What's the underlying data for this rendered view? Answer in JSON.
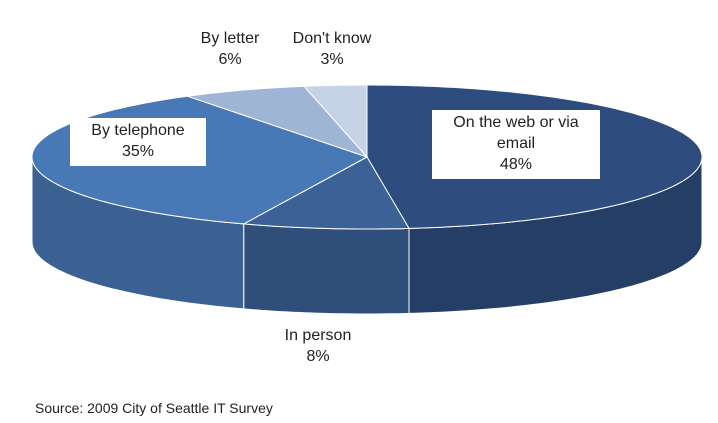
{
  "chart_data": {
    "type": "pie",
    "categories": [
      "On the web or via email",
      "In person",
      "By telephone",
      "By letter",
      "Don't know"
    ],
    "values": [
      48,
      8,
      35,
      6,
      3
    ],
    "value_labels": [
      "48%",
      "8%",
      "35%",
      "6%",
      "3%"
    ],
    "colors": [
      "#2e4d7e",
      "#3b6197",
      "#4879b6",
      "#9fb5d6",
      "#c6d3e6"
    ],
    "source": "Source: 2009 City of Seattle IT Survey"
  }
}
